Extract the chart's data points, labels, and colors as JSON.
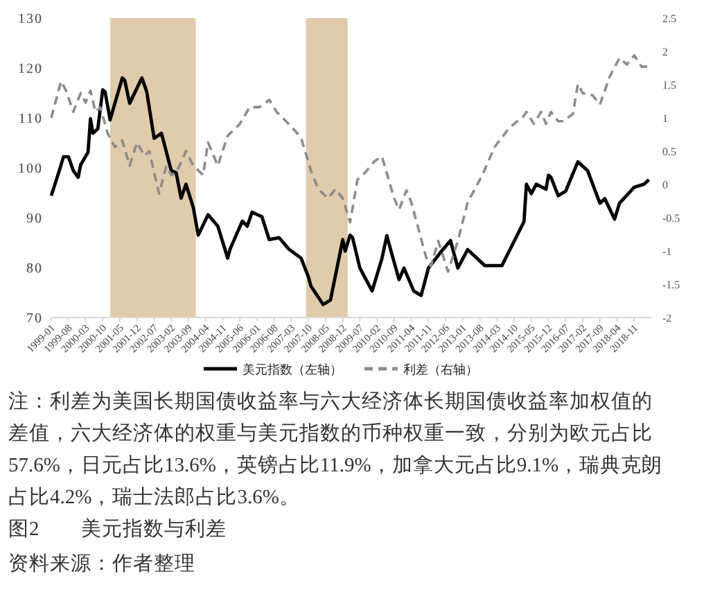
{
  "chart_data": {
    "type": "line",
    "title": "图2　　美元指数与利差",
    "x": [
      "1999-01",
      "1999-04",
      "1999-06",
      "1999-08",
      "1999-10",
      "1999-12",
      "2000-01",
      "2000-04",
      "2000-05",
      "2000-06",
      "2000-08",
      "2000-10",
      "2000-11",
      "2001-01",
      "2001-06",
      "2001-07",
      "2001-09",
      "2002-02",
      "2002-04",
      "2002-07",
      "2002-10",
      "2003-02",
      "2003-04",
      "2003-06",
      "2003-08",
      "2003-11",
      "2004-01",
      "2004-05",
      "2004-09",
      "2005-01",
      "2005-02",
      "2005-07",
      "2005-09",
      "2005-11",
      "2006-03",
      "2006-06",
      "2006-10",
      "2007-02",
      "2007-07",
      "2007-10",
      "2007-11",
      "2008-04",
      "2008-07",
      "2008-12",
      "2009-01",
      "2009-03",
      "2009-04",
      "2009-07",
      "2009-12",
      "2010-04",
      "2010-06",
      "2010-08",
      "2010-11",
      "2011-01",
      "2011-05",
      "2011-08",
      "2011-11",
      "2012-04",
      "2012-08",
      "2012-11",
      "2013-03",
      "2013-10",
      "2014-05",
      "2015-02",
      "2015-03",
      "2015-05",
      "2015-07",
      "2015-11",
      "2015-12",
      "2016-01",
      "2016-04",
      "2016-07",
      "2016-12",
      "2017-04",
      "2017-09",
      "2017-11",
      "2018-03",
      "2018-05",
      "2018-11",
      "2019-03",
      "2019-05"
    ],
    "series": [
      {
        "name": "美元指数（左轴）",
        "color": "#000000",
        "line_style": "solid",
        "values": [
          94.4,
          99.0,
          102.2,
          102.2,
          99.4,
          98.1,
          100.6,
          103.1,
          109.8,
          106.9,
          107.8,
          115.6,
          115.2,
          109.6,
          118.0,
          117.5,
          112.9,
          118.0,
          115.2,
          105.9,
          106.9,
          99.4,
          99.0,
          93.9,
          96.7,
          92.0,
          86.5,
          90.6,
          88.3,
          81.9,
          83.7,
          89.3,
          88.3,
          91.1,
          90.2,
          85.6,
          86.0,
          83.7,
          81.9,
          78.1,
          76.3,
          72.6,
          73.5,
          85.6,
          83.3,
          86.5,
          86.0,
          79.9,
          75.3,
          81.8,
          86.4,
          82.8,
          77.6,
          79.9,
          75.3,
          74.4,
          79.9,
          83.1,
          85.4,
          79.9,
          83.6,
          80.4,
          80.4,
          89.2,
          96.7,
          94.8,
          96.7,
          95.7,
          98.5,
          98.1,
          94.4,
          95.3,
          101.2,
          99.4,
          92.9,
          93.8,
          89.7,
          92.9,
          96.1,
          96.7,
          97.6
        ]
      },
      {
        "name": "利差（右轴）",
        "color": "#8c8c8c",
        "line_style": "dashed",
        "axis": "y2",
        "x": [
          "1999-01",
          "1999-05",
          "1999-07",
          "1999-10",
          "2000-01",
          "2000-03",
          "2000-05",
          "2000-07",
          "2000-09",
          "2000-12",
          "2001-03",
          "2001-06",
          "2001-09",
          "2001-12",
          "2002-03",
          "2002-05",
          "2002-09",
          "2002-12",
          "2003-02",
          "2003-04",
          "2003-08",
          "2003-11",
          "2004-03",
          "2004-05",
          "2004-09",
          "2005-01",
          "2005-06",
          "2005-10",
          "2006-02",
          "2006-06",
          "2006-09",
          "2007-03",
          "2007-07",
          "2007-11",
          "2008-02",
          "2008-06",
          "2008-09",
          "2008-12",
          "2009-03",
          "2009-06",
          "2009-09",
          "2010-01",
          "2010-04",
          "2010-09",
          "2010-11",
          "2011-02",
          "2011-04",
          "2011-10",
          "2011-12",
          "2012-03",
          "2012-07",
          "2012-11",
          "2013-03",
          "2013-09",
          "2014-02",
          "2014-08",
          "2015-02",
          "2015-03",
          "2015-06",
          "2015-09",
          "2015-11",
          "2016-01",
          "2016-04",
          "2016-06",
          "2016-10",
          "2016-12",
          "2017-02",
          "2017-06",
          "2017-09",
          "2018-01",
          "2018-05",
          "2018-08",
          "2018-11",
          "2019-02",
          "2019-05"
        ],
        "values": [
          1.0,
          1.55,
          1.41,
          1.09,
          1.37,
          1.23,
          1.41,
          1.09,
          1.16,
          0.77,
          0.56,
          0.66,
          0.28,
          0.63,
          0.43,
          0.5,
          -0.14,
          0.28,
          0.14,
          0.17,
          0.5,
          0.28,
          0.14,
          0.63,
          0.28,
          0.73,
          0.91,
          1.16,
          1.16,
          1.27,
          1.09,
          0.87,
          0.7,
          0.21,
          -0.07,
          -0.21,
          -0.07,
          -0.21,
          -0.57,
          0.07,
          0.17,
          0.35,
          0.42,
          -0.21,
          -0.38,
          -0.09,
          -0.27,
          -1.09,
          -1.23,
          -0.85,
          -1.31,
          -0.85,
          -0.27,
          0.14,
          0.56,
          0.85,
          1.03,
          1.09,
          0.91,
          1.09,
          0.91,
          1.09,
          0.95,
          0.95,
          1.06,
          1.51,
          1.37,
          1.34,
          1.2,
          1.62,
          1.9,
          1.8,
          1.94,
          1.77,
          1.77
        ]
      }
    ],
    "xlim": [
      "1999-01",
      "2019-06"
    ],
    "xticks": [
      "1999-01",
      "1999-08",
      "2000-03",
      "2000-10",
      "2001-05",
      "2001-12",
      "2002-07",
      "2003-02",
      "2003-09",
      "2004-04",
      "2004-11",
      "2005-06",
      "2006-01",
      "2006-08",
      "2007-03",
      "2007-10",
      "2008-05",
      "2008-12",
      "2009-07",
      "2010-02",
      "2010-09",
      "2011-04",
      "2011-11",
      "2012-06",
      "2013-01",
      "2013-08",
      "2014-03",
      "2014-10",
      "2015-05",
      "2015-12",
      "2016-07",
      "2017-02",
      "2017-09",
      "2018-04",
      "2018-11"
    ],
    "ylim": [
      70,
      130
    ],
    "yticks": [
      70,
      80,
      90,
      100,
      110,
      120,
      130
    ],
    "y2lim": [
      -2,
      2.5
    ],
    "y2ticks": [
      -2,
      -1.5,
      -1,
      -0.5,
      0,
      0.5,
      1,
      1.5,
      2,
      2.5
    ],
    "bands": [
      {
        "axis": "x",
        "from": "2001-01",
        "to": "2003-12",
        "color": "#e0ccab"
      },
      {
        "axis": "x",
        "from": "2007-09",
        "to": "2009-02",
        "color": "#e0ccab"
      }
    ],
    "grid": false,
    "legend": "bottom",
    "annotations": [
      "注：利差为美国长期国债收益率与六大经济体长期国债收益率加权值的差值，六大经济体的权重与美元指数的币种权重一致，分别为欧元占比57.6%，日元占比13.6%，英镑占比11.9%，加拿大元占比9.1%，瑞典克朗占比4.2%，瑞士法郎占比3.6%。",
      "资料来源：作者整理"
    ]
  }
}
